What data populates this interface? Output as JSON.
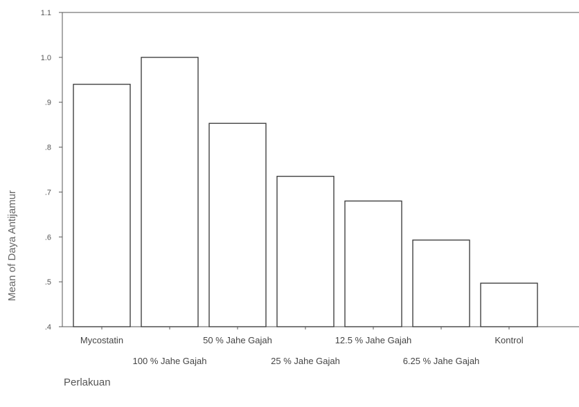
{
  "chart_data": {
    "type": "bar",
    "title": "",
    "xlabel": "Perlakuan",
    "ylabel": "Mean of Daya Antijamur",
    "ylim": [
      0.4,
      1.1
    ],
    "yticks": [
      0.4,
      0.5,
      0.6,
      0.7,
      0.8,
      0.9,
      1.0,
      1.1
    ],
    "ytick_labels": [
      ".4",
      ".5",
      ".6",
      ".7",
      ".8",
      ".9",
      "1.0",
      "1.1"
    ],
    "categories": [
      "Mycostatin",
      "100 % Jahe Gajah",
      "50 % Jahe Gajah",
      "25 % Jahe Gajah",
      "12.5 % Jahe Gajah",
      "6.25 % Jahe Gajah",
      "Kontrol"
    ],
    "values": [
      0.94,
      1.0,
      0.853,
      0.735,
      0.68,
      0.593,
      0.497
    ],
    "grid": false,
    "legend": "none",
    "colors": {
      "bar_fill": "#ffffff",
      "bar_stroke": "#333333",
      "axis": "#555555",
      "text": "#555555"
    }
  }
}
